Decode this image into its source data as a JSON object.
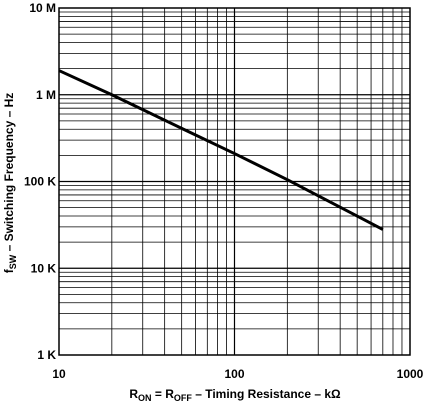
{
  "chart_data": {
    "type": "line",
    "title": "",
    "x_scale": "log",
    "y_scale": "log",
    "xlim": [
      10,
      1000
    ],
    "ylim": [
      1000,
      10000000
    ],
    "grid": true,
    "x_ticks": [
      {
        "value": 10,
        "label": "10"
      },
      {
        "value": 100,
        "label": "100"
      },
      {
        "value": 1000,
        "label": "1000"
      }
    ],
    "y_ticks": [
      {
        "value": 10000000,
        "label": "10 M"
      },
      {
        "value": 1000000,
        "label": "1 M"
      },
      {
        "value": 100000,
        "label": "100 K"
      },
      {
        "value": 10000,
        "label": "10 K"
      },
      {
        "value": 1000,
        "label": "1 K"
      }
    ],
    "xlabel": {
      "R": "R",
      "ON": "ON",
      "eq": " = R",
      "OFF": "OFF",
      "rest": " – Timing Resistance – kΩ"
    },
    "ylabel": {
      "f": "f",
      "SW": "SW",
      "rest": " – Switching Frequency – Hz"
    },
    "series": [
      {
        "x": [
          10,
          20,
          50,
          100,
          200,
          500,
          700
        ],
        "y": [
          1900000,
          1000000,
          410000,
          210000,
          105000,
          40000,
          28000
        ]
      }
    ]
  }
}
